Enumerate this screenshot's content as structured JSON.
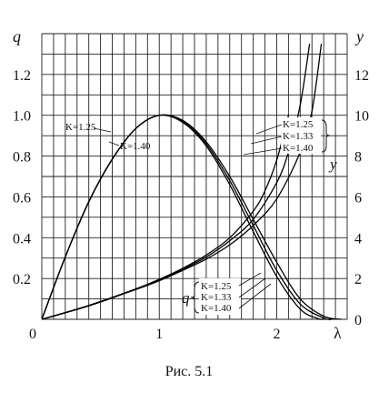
{
  "chart_data": {
    "type": "line",
    "caption": "Рис. 5.1",
    "x_axis": {
      "label": "λ",
      "range": [
        0,
        2.6
      ],
      "ticks": [
        0,
        1,
        2
      ],
      "tick_labels": [
        "0",
        "1",
        "2"
      ]
    },
    "y_left": {
      "label": "q",
      "range": [
        0,
        1.4
      ],
      "ticks": [
        0.2,
        0.4,
        0.6,
        0.8,
        1.0,
        1.2
      ],
      "tick_labels": [
        "0.2",
        "0.4",
        "0.6",
        "0.8",
        "1.0",
        "1.2"
      ]
    },
    "y_right": {
      "label": "y",
      "range": [
        0,
        14
      ],
      "ticks": [
        0,
        2,
        4,
        6,
        8,
        10,
        12
      ],
      "tick_labels": [
        "0",
        "2",
        "4",
        "6",
        "8",
        "10",
        "12"
      ]
    },
    "grid": true,
    "q_group": {
      "name": "q",
      "series": [
        {
          "k": 1.25,
          "label": "K=1.25",
          "x": [
            0,
            0.2,
            0.4,
            0.6,
            0.8,
            1.0,
            1.2,
            1.4,
            1.6,
            1.8,
            2.0,
            2.2,
            2.4,
            2.55
          ],
          "values": [
            0,
            0.306,
            0.575,
            0.784,
            0.935,
            1.0,
            0.975,
            0.87,
            0.7,
            0.49,
            0.28,
            0.1,
            0.015,
            0
          ]
        },
        {
          "k": 1.33,
          "label": "K=1.33",
          "x": [
            0,
            0.2,
            0.4,
            0.6,
            0.8,
            1.0,
            1.2,
            1.4,
            1.6,
            1.8,
            2.0,
            2.2,
            2.4,
            2.47
          ],
          "values": [
            0,
            0.306,
            0.576,
            0.785,
            0.935,
            1.0,
            0.97,
            0.86,
            0.68,
            0.46,
            0.24,
            0.075,
            0.006,
            0
          ]
        },
        {
          "k": 1.4,
          "label": "K=1.40",
          "x": [
            0,
            0.2,
            0.4,
            0.6,
            0.8,
            1.0,
            1.2,
            1.4,
            1.6,
            1.8,
            2.0,
            2.2,
            2.35,
            2.4
          ],
          "values": [
            0,
            0.306,
            0.577,
            0.786,
            0.935,
            1.0,
            0.965,
            0.85,
            0.66,
            0.43,
            0.21,
            0.05,
            0.004,
            0
          ]
        }
      ]
    },
    "y_group": {
      "name": "y",
      "series": [
        {
          "k": 1.25,
          "label": "K=1.25",
          "x": [
            0,
            0.4,
            0.8,
            1.0,
            1.2,
            1.4,
            1.6,
            1.8,
            1.9,
            2.0,
            2.1
          ],
          "values": [
            0,
            0.68,
            1.49,
            1.96,
            2.5,
            3.15,
            4.0,
            5.3,
            6.3,
            7.8,
            10.0
          ]
        },
        {
          "k": 1.33,
          "label": "K=1.33",
          "x": [
            0,
            0.4,
            0.8,
            1.0,
            1.2,
            1.4,
            1.6,
            1.8,
            2.0,
            2.1,
            2.2,
            2.28
          ],
          "values": [
            0,
            0.67,
            1.48,
            1.93,
            2.45,
            3.05,
            3.85,
            4.9,
            6.7,
            8.2,
            10.5,
            13.5
          ]
        },
        {
          "k": 1.4,
          "label": "K=1.40",
          "x": [
            0,
            0.4,
            0.8,
            1.0,
            1.2,
            1.4,
            1.6,
            1.8,
            2.0,
            2.2,
            2.3,
            2.38
          ],
          "values": [
            0,
            0.66,
            1.46,
            1.89,
            2.4,
            2.95,
            3.65,
            4.6,
            5.9,
            8.2,
            10.2,
            13.5
          ]
        }
      ]
    },
    "curve_labels_top": [
      "K=1.25",
      "K=1.40"
    ]
  }
}
